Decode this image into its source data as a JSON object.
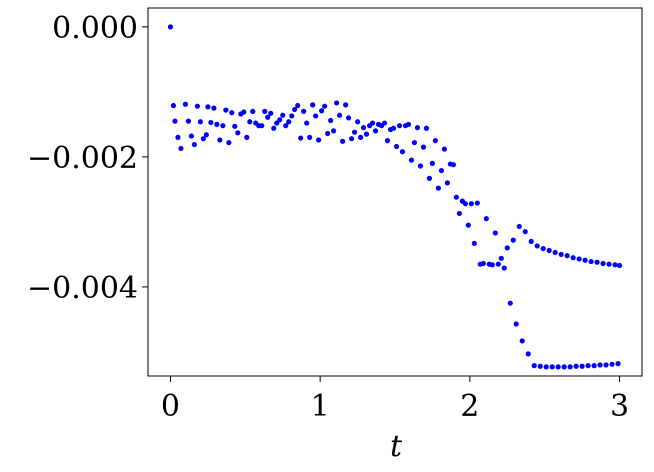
{
  "chart_data": {
    "type": "scatter",
    "title": "",
    "xlabel": "t",
    "ylabel": "",
    "xlim": [
      -0.15,
      3.15
    ],
    "ylim": [
      -0.00537,
      0.00029
    ],
    "x_ticks": [
      0,
      1,
      2,
      3
    ],
    "x_tick_labels": [
      "0",
      "1",
      "2",
      "3"
    ],
    "y_ticks": [
      0.0,
      -0.002,
      -0.004
    ],
    "y_tick_labels": [
      "0.000",
      "−0.002",
      "−0.004"
    ],
    "grid": false,
    "legend": "none",
    "marker_color": "#0000ff",
    "points": [
      [
        0.0,
        0.0
      ],
      [
        0.02,
        -0.00121
      ],
      [
        0.03,
        -0.00145
      ],
      [
        0.05,
        -0.0017
      ],
      [
        0.07,
        -0.00187
      ],
      [
        0.1,
        -0.00119
      ],
      [
        0.12,
        -0.00145
      ],
      [
        0.14,
        -0.00168
      ],
      [
        0.16,
        -0.00181
      ],
      [
        0.18,
        -0.00122
      ],
      [
        0.2,
        -0.00146
      ],
      [
        0.22,
        -0.00172
      ],
      [
        0.24,
        -0.00166
      ],
      [
        0.25,
        -0.00123
      ],
      [
        0.27,
        -0.00147
      ],
      [
        0.29,
        -0.00125
      ],
      [
        0.31,
        -0.0015
      ],
      [
        0.33,
        -0.00174
      ],
      [
        0.35,
        -0.00152
      ],
      [
        0.37,
        -0.00128
      ],
      [
        0.39,
        -0.00178
      ],
      [
        0.41,
        -0.00132
      ],
      [
        0.43,
        -0.00153
      ],
      [
        0.45,
        -0.00163
      ],
      [
        0.47,
        -0.00134
      ],
      [
        0.49,
        -0.00131
      ],
      [
        0.51,
        -0.0017
      ],
      [
        0.53,
        -0.00146
      ],
      [
        0.55,
        -0.0013
      ],
      [
        0.57,
        -0.00148
      ],
      [
        0.59,
        -0.00152
      ],
      [
        0.61,
        -0.00152
      ],
      [
        0.63,
        -0.0013
      ],
      [
        0.65,
        -0.00139
      ],
      [
        0.67,
        -0.00133
      ],
      [
        0.69,
        -0.00156
      ],
      [
        0.71,
        -0.00148
      ],
      [
        0.73,
        -0.00143
      ],
      [
        0.75,
        -0.00136
      ],
      [
        0.77,
        -0.00152
      ],
      [
        0.79,
        -0.00146
      ],
      [
        0.81,
        -0.00137
      ],
      [
        0.83,
        -0.00127
      ],
      [
        0.85,
        -0.00121
      ],
      [
        0.87,
        -0.00171
      ],
      [
        0.89,
        -0.0013
      ],
      [
        0.91,
        -0.00148
      ],
      [
        0.93,
        -0.0017
      ],
      [
        0.95,
        -0.0012
      ],
      [
        0.97,
        -0.00137
      ],
      [
        0.99,
        -0.00174
      ],
      [
        1.01,
        -0.00129
      ],
      [
        1.03,
        -0.00122
      ],
      [
        1.05,
        -0.00164
      ],
      [
        1.07,
        -0.00144
      ],
      [
        1.09,
        -0.0016
      ],
      [
        1.11,
        -0.00117
      ],
      [
        1.13,
        -0.00136
      ],
      [
        1.15,
        -0.00176
      ],
      [
        1.17,
        -0.0012
      ],
      [
        1.19,
        -0.0014
      ],
      [
        1.21,
        -0.00172
      ],
      [
        1.23,
        -0.00162
      ],
      [
        1.25,
        -0.00146
      ],
      [
        1.27,
        -0.0017
      ],
      [
        1.29,
        -0.00155
      ],
      [
        1.31,
        -0.00165
      ],
      [
        1.33,
        -0.00152
      ],
      [
        1.35,
        -0.00148
      ],
      [
        1.37,
        -0.0016
      ],
      [
        1.39,
        -0.0015
      ],
      [
        1.41,
        -0.00152
      ],
      [
        1.43,
        -0.00148
      ],
      [
        1.45,
        -0.00175
      ],
      [
        1.47,
        -0.00158
      ],
      [
        1.49,
        -0.00156
      ],
      [
        1.51,
        -0.00184
      ],
      [
        1.53,
        -0.00152
      ],
      [
        1.55,
        -0.00192
      ],
      [
        1.57,
        -0.00152
      ],
      [
        1.59,
        -0.0015
      ],
      [
        1.61,
        -0.00205
      ],
      [
        1.63,
        -0.00178
      ],
      [
        1.65,
        -0.00155
      ],
      [
        1.67,
        -0.00214
      ],
      [
        1.69,
        -0.00185
      ],
      [
        1.71,
        -0.00156
      ],
      [
        1.73,
        -0.00233
      ],
      [
        1.75,
        -0.0021
      ],
      [
        1.77,
        -0.00175
      ],
      [
        1.79,
        -0.00248
      ],
      [
        1.81,
        -0.00221
      ],
      [
        1.83,
        -0.00188
      ],
      [
        1.85,
        -0.0024
      ],
      [
        1.87,
        -0.00211
      ],
      [
        1.89,
        -0.00212
      ],
      [
        1.91,
        -0.00262
      ],
      [
        1.93,
        -0.00287
      ],
      [
        1.95,
        -0.00268
      ],
      [
        1.97,
        -0.00272
      ],
      [
        1.99,
        -0.00305
      ],
      [
        2.01,
        -0.00272
      ],
      [
        2.03,
        -0.00333
      ],
      [
        2.05,
        -0.00271
      ],
      [
        2.07,
        -0.00365
      ],
      [
        2.09,
        -0.00364
      ],
      [
        2.11,
        -0.00295
      ],
      [
        2.13,
        -0.00365
      ],
      [
        2.15,
        -0.00366
      ],
      [
        2.17,
        -0.00317
      ],
      [
        2.19,
        -0.00365
      ],
      [
        2.21,
        -0.00356
      ],
      [
        2.23,
        -0.00371
      ],
      [
        2.25,
        -0.0034
      ],
      [
        2.27,
        -0.00425
      ],
      [
        2.29,
        -0.00328
      ],
      [
        2.31,
        -0.00457
      ],
      [
        2.33,
        -0.00307
      ],
      [
        2.35,
        -0.00483
      ],
      [
        2.37,
        -0.00315
      ],
      [
        2.39,
        -0.00503
      ],
      [
        2.41,
        -0.0033
      ],
      [
        2.43,
        -0.00521
      ],
      [
        2.45,
        -0.00337
      ],
      [
        2.47,
        -0.00522
      ],
      [
        2.49,
        -0.00341
      ],
      [
        2.51,
        -0.00523
      ],
      [
        2.53,
        -0.00344
      ],
      [
        2.55,
        -0.00523
      ],
      [
        2.57,
        -0.00347
      ],
      [
        2.59,
        -0.00523
      ],
      [
        2.61,
        -0.0035
      ],
      [
        2.63,
        -0.00523
      ],
      [
        2.65,
        -0.00352
      ],
      [
        2.67,
        -0.00523
      ],
      [
        2.69,
        -0.00355
      ],
      [
        2.71,
        -0.00522
      ],
      [
        2.73,
        -0.00357
      ],
      [
        2.75,
        -0.00522
      ],
      [
        2.77,
        -0.00359
      ],
      [
        2.79,
        -0.00521
      ],
      [
        2.81,
        -0.00361
      ],
      [
        2.83,
        -0.00521
      ],
      [
        2.85,
        -0.00362
      ],
      [
        2.87,
        -0.0052
      ],
      [
        2.89,
        -0.00364
      ],
      [
        2.91,
        -0.0052
      ],
      [
        2.93,
        -0.00365
      ],
      [
        2.95,
        -0.00519
      ],
      [
        2.97,
        -0.00366
      ],
      [
        2.99,
        -0.00518
      ],
      [
        3.0,
        -0.00367
      ]
    ]
  }
}
